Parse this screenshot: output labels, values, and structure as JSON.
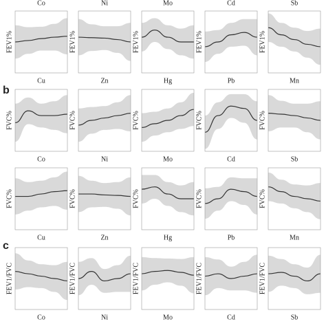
{
  "panel_labels": [
    "b",
    "c"
  ],
  "top_labels": [
    "Co",
    "Ni",
    "Mo",
    "Cd",
    "Sb"
  ],
  "chart_data": [
    {
      "type": "line",
      "x_label": "Cu",
      "y_label": "FEV1%",
      "ylim": [
        -20,
        110
      ],
      "values": [
        45,
        48,
        52,
        55,
        57
      ],
      "ci": [
        35,
        28,
        25,
        28,
        38
      ]
    },
    {
      "type": "line",
      "x_label": "Zn",
      "y_label": "FEV1%",
      "ylim": [
        -20,
        110
      ],
      "values": [
        55,
        54,
        53,
        50,
        45
      ],
      "ci": [
        38,
        28,
        25,
        28,
        40
      ]
    },
    {
      "type": "line",
      "x_label": "Hg",
      "y_label": "FEV1%",
      "ylim": [
        -20,
        110
      ],
      "values": [
        55,
        70,
        55,
        45,
        45
      ],
      "ci": [
        30,
        25,
        25,
        28,
        35
      ]
    },
    {
      "type": "line",
      "x_label": "Pb",
      "y_label": "FEV1%",
      "ylim": [
        -20,
        110
      ],
      "values": [
        35,
        45,
        60,
        65,
        55
      ],
      "ci": [
        32,
        25,
        25,
        28,
        38
      ]
    },
    {
      "type": "line",
      "x_label": "Mn",
      "y_label": "FEV1%",
      "ylim": [
        -20,
        110
      ],
      "values": [
        75,
        60,
        50,
        40,
        35
      ],
      "ci": [
        30,
        25,
        25,
        28,
        38
      ]
    },
    {
      "type": "line",
      "x_label": "Co",
      "y_label": "FVC%",
      "ylim": [
        -20,
        110
      ],
      "values": [
        40,
        65,
        55,
        55,
        58
      ],
      "ci": [
        40,
        28,
        25,
        30,
        40
      ]
    },
    {
      "type": "line",
      "x_label": "Ni",
      "y_label": "FVC%",
      "ylim": [
        -20,
        110
      ],
      "values": [
        35,
        45,
        50,
        55,
        60
      ],
      "ci": [
        35,
        28,
        25,
        28,
        38
      ]
    },
    {
      "type": "line",
      "x_label": "Mo",
      "y_label": "FVC%",
      "ylim": [
        -20,
        110
      ],
      "values": [
        30,
        38,
        45,
        55,
        68
      ],
      "ci": [
        30,
        25,
        25,
        28,
        35
      ]
    },
    {
      "type": "line",
      "x_label": "Cd",
      "y_label": "FVC%",
      "ylim": [
        -20,
        110
      ],
      "values": [
        20,
        55,
        75,
        70,
        45
      ],
      "ci": [
        35,
        28,
        25,
        30,
        40
      ]
    },
    {
      "type": "line",
      "x_label": "Sb",
      "y_label": "FVC%",
      "ylim": [
        -20,
        110
      ],
      "values": [
        60,
        58,
        55,
        50,
        45
      ],
      "ci": [
        38,
        28,
        25,
        30,
        40
      ]
    },
    {
      "type": "line",
      "x_label": "Cu",
      "y_label": "FVC%",
      "ylim": [
        -20,
        110
      ],
      "values": [
        50,
        50,
        55,
        60,
        62
      ],
      "ci": [
        38,
        30,
        28,
        30,
        40
      ]
    },
    {
      "type": "line",
      "x_label": "Zn",
      "y_label": "FVC%",
      "ylim": [
        -20,
        110
      ],
      "values": [
        55,
        55,
        53,
        52,
        50
      ],
      "ci": [
        38,
        28,
        25,
        28,
        40
      ]
    },
    {
      "type": "line",
      "x_label": "Hg",
      "y_label": "FVC%",
      "ylim": [
        -20,
        110
      ],
      "values": [
        65,
        70,
        55,
        45,
        45
      ],
      "ci": [
        30,
        25,
        25,
        28,
        35
      ]
    },
    {
      "type": "line",
      "x_label": "Pb",
      "y_label": "FVC%",
      "ylim": [
        -20,
        110
      ],
      "values": [
        35,
        45,
        65,
        60,
        50
      ],
      "ci": [
        32,
        25,
        25,
        28,
        38
      ]
    },
    {
      "type": "line",
      "x_label": "Mn",
      "y_label": "FVC%",
      "ylim": [
        -20,
        110
      ],
      "values": [
        70,
        60,
        50,
        45,
        40
      ],
      "ci": [
        30,
        25,
        25,
        28,
        38
      ]
    },
    {
      "type": "line",
      "x_label": "Co",
      "y_label": "FEV1/FVC",
      "ylim": [
        -20,
        110
      ],
      "values": [
        60,
        55,
        50,
        45,
        40
      ],
      "ci": [
        38,
        28,
        25,
        28,
        40
      ]
    },
    {
      "type": "line",
      "x_label": "Ni",
      "y_label": "FEV1/FVC",
      "ylim": [
        -20,
        110
      ],
      "values": [
        45,
        60,
        40,
        45,
        55
      ],
      "ci": [
        35,
        28,
        25,
        28,
        38
      ]
    },
    {
      "type": "line",
      "x_label": "Mo",
      "y_label": "FEV1/FVC",
      "ylim": [
        -20,
        110
      ],
      "values": [
        55,
        60,
        62,
        58,
        52
      ],
      "ci": [
        35,
        28,
        25,
        28,
        38
      ]
    },
    {
      "type": "line",
      "x_label": "Cd",
      "y_label": "FEV1/FVC",
      "ylim": [
        -20,
        110
      ],
      "values": [
        50,
        55,
        45,
        50,
        55
      ],
      "ci": [
        40,
        30,
        25,
        30,
        40
      ]
    },
    {
      "type": "line",
      "x_label": "Sb",
      "y_label": "FEV1/FVC",
      "ylim": [
        -20,
        110
      ],
      "values": [
        55,
        58,
        50,
        40,
        55
      ],
      "ci": [
        38,
        28,
        25,
        28,
        40
      ]
    }
  ]
}
